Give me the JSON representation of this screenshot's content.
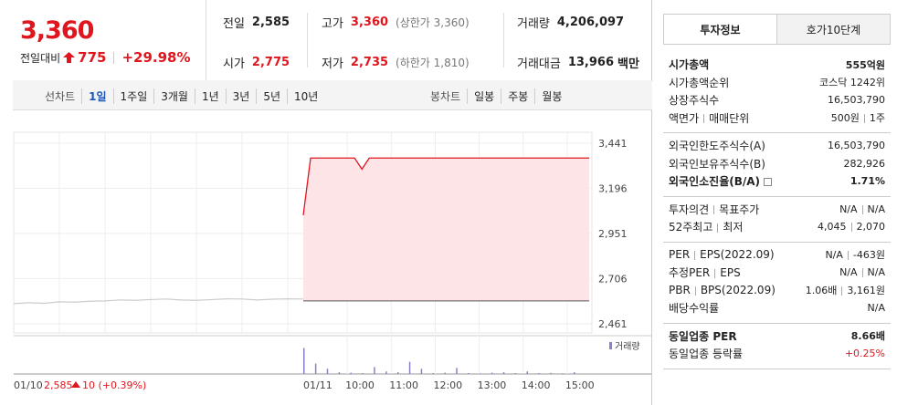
{
  "quote": {
    "price": "3,360",
    "change_label": "전일대비",
    "change": "775",
    "change_pct": "+29.98%"
  },
  "summary": [
    {
      "label": "전일",
      "value": "2,585"
    },
    {
      "label": "고가",
      "value": "3,360",
      "note": "(상한가 3,360)"
    },
    {
      "label": "거래량",
      "value": "4,206,097"
    },
    {
      "label": "시가",
      "value": "2,775"
    },
    {
      "label": "저가",
      "value": "2,735",
      "note": "(하한가 1,810)"
    },
    {
      "label": "거래대금",
      "value": "13,966",
      "note": "백만"
    }
  ],
  "tabs": {
    "line_label": "선차트",
    "line_options": [
      "1일",
      "1주일",
      "3개월",
      "1년",
      "3년",
      "5년",
      "10년"
    ],
    "candle_label": "봉차트",
    "candle_options": [
      "일봉",
      "주봉",
      "월봉"
    ]
  },
  "chart_data": {
    "type": "line",
    "ylim": [
      2411,
      3500
    ],
    "yticks": [
      {
        "value": 3441,
        "label": "3,441"
      },
      {
        "value": 3196,
        "label": "3,196"
      },
      {
        "value": 2951,
        "label": "2,951"
      },
      {
        "value": 2706,
        "label": "2,706"
      },
      {
        "value": 2461,
        "label": "2,461"
      }
    ],
    "prev_close": 2585,
    "prev_day": [
      2570,
      2575,
      2572,
      2580,
      2578,
      2583,
      2585,
      2590,
      2588,
      2592,
      2595,
      2590,
      2588,
      2592,
      2596,
      2595,
      2590,
      2594,
      2596,
      2595
    ],
    "today": [
      3050,
      3360,
      3360,
      3360,
      3360,
      3360,
      3360,
      3360,
      3300,
      3360,
      3360,
      3360,
      3360,
      3360,
      3360,
      3360,
      3360,
      3360,
      3360,
      3360,
      3360,
      3360,
      3360,
      3360,
      3360,
      3360,
      3360,
      3360,
      3360,
      3360,
      3360,
      3360,
      3360,
      3360,
      3360,
      3360,
      3360,
      3360,
      3360,
      3360
    ],
    "volume_label": "거래량",
    "volume_ylim": [
      0,
      400000
    ],
    "volume": [
      300000,
      120000,
      60000,
      20000,
      15000,
      10000,
      80000,
      30000,
      20000,
      140000,
      60000,
      10000,
      15000,
      70000,
      10000,
      8000,
      15000,
      20000,
      10000,
      30000,
      10000,
      12000,
      8000,
      20000
    ],
    "x_labels": [
      "01/10",
      "01/11",
      "10:00",
      "11:00",
      "12:00",
      "13:00",
      "14:00",
      "15:00"
    ],
    "footer": {
      "date": "01/10",
      "close": "2,585",
      "change": "10 (+0.39%)"
    }
  },
  "info": {
    "tabs": [
      "투자정보",
      "호가10단계"
    ],
    "sections": [
      [
        {
          "label": [
            "시가총액"
          ],
          "value": [
            "555억원"
          ],
          "bold": true
        },
        {
          "label": [
            "시가총액순위"
          ],
          "value": [
            "코스닥 1242위"
          ]
        },
        {
          "label": [
            "상장주식수"
          ],
          "value": [
            "16,503,790"
          ]
        },
        {
          "label": [
            "액면가",
            "매매단위"
          ],
          "value": [
            "500원",
            "1주"
          ]
        }
      ],
      [
        {
          "label": [
            "외국인한도주식수(A)"
          ],
          "value": [
            "16,503,790"
          ]
        },
        {
          "label": [
            "외국인보유주식수(B)"
          ],
          "value": [
            "282,926"
          ]
        },
        {
          "label": [
            "외국인소진율(B/A)"
          ],
          "value": [
            "1.71%"
          ],
          "bold": true
        }
      ],
      [
        {
          "label": [
            "투자의견",
            "목표주가"
          ],
          "value": [
            "N/A",
            "N/A"
          ]
        },
        {
          "label": [
            "52주최고",
            "최저"
          ],
          "value": [
            "4,045",
            "2,070"
          ]
        }
      ],
      [
        {
          "label": [
            "PER",
            "EPS(2022.09)"
          ],
          "value": [
            "N/A",
            "-463원"
          ]
        },
        {
          "label": [
            "추정PER",
            "EPS"
          ],
          "value": [
            "N/A",
            "N/A"
          ]
        },
        {
          "label": [
            "PBR",
            "BPS(2022.09)"
          ],
          "value": [
            "1.06배",
            "3,161원"
          ]
        },
        {
          "label": [
            "배당수익률"
          ],
          "value": [
            "N/A"
          ]
        }
      ],
      [
        {
          "label": [
            "동일업종 PER"
          ],
          "value": [
            "8.66배"
          ],
          "bold": true
        },
        {
          "label": [
            "동일업종 등락률"
          ],
          "value": [
            "+0.25%"
          ],
          "red": true
        }
      ]
    ]
  }
}
